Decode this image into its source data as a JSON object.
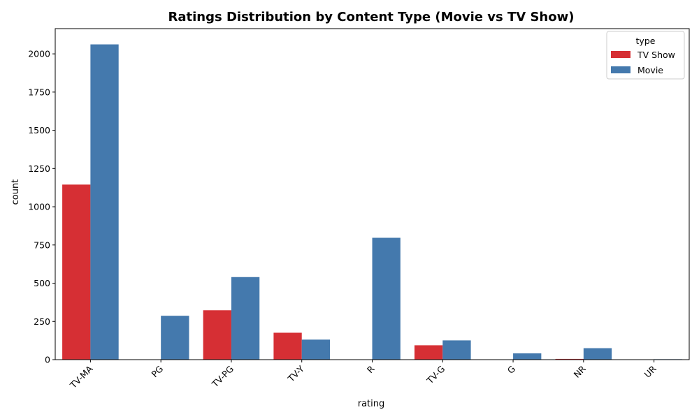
{
  "chart_data": {
    "type": "bar",
    "title": "Ratings Distribution by Content Type (Movie vs TV Show)",
    "xlabel": "rating",
    "ylabel": "count",
    "categories": [
      "TV-MA",
      "PG",
      "TV-PG",
      "TV-Y",
      "R",
      "TV-G",
      "G",
      "NR",
      "UR"
    ],
    "series": [
      {
        "name": "TV Show",
        "color": "#d62f34",
        "values": [
          1145,
          0,
          323,
          176,
          0,
          94,
          0,
          5,
          0
        ]
      },
      {
        "name": "Movie",
        "color": "#4479ad",
        "values": [
          2062,
          287,
          540,
          131,
          797,
          126,
          41,
          75,
          3
        ]
      }
    ],
    "ylim": [
      0,
      2165
    ],
    "yticks": [
      0,
      250,
      500,
      750,
      1000,
      1250,
      1500,
      1750,
      2000
    ],
    "legend": {
      "title": "type",
      "placement": "top-right"
    },
    "grid": false
  }
}
